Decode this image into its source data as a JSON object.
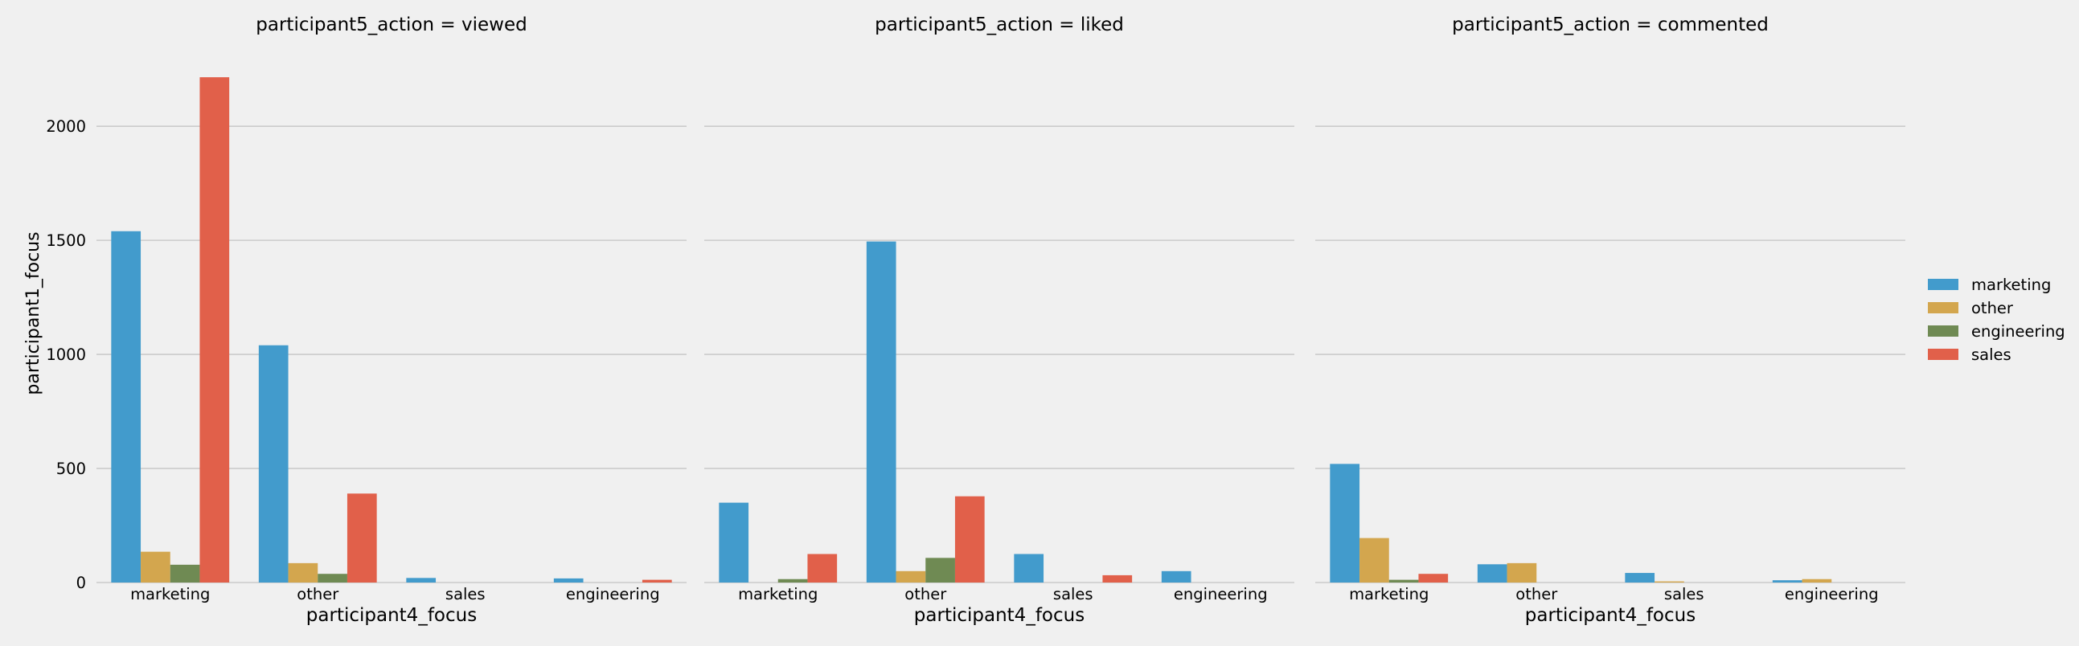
{
  "chart_data": {
    "type": "bar",
    "ylabel": "participant1_focus",
    "ylim": [
      0,
      2300
    ],
    "yticks": [
      0,
      500,
      1000,
      1500,
      2000
    ],
    "grid": true,
    "legend_placement": "right",
    "categories": [
      "marketing",
      "other",
      "sales",
      "engineering"
    ],
    "hue_order": [
      "marketing",
      "other",
      "engineering",
      "sales"
    ],
    "legend": [
      {
        "name": "marketing",
        "color": "#429bcc"
      },
      {
        "name": "other",
        "color": "#d3a64e"
      },
      {
        "name": "engineering",
        "color": "#6f8a53"
      },
      {
        "name": "sales",
        "color": "#e1604a"
      }
    ],
    "panels": [
      {
        "title": "participant5_action = viewed",
        "xlabel": "participant4_focus",
        "series": [
          {
            "name": "marketing",
            "values": [
              1540,
              1040,
              20,
              18
            ]
          },
          {
            "name": "sales",
            "values": [
              2215,
              390,
              null,
              12
            ]
          },
          {
            "name": "other",
            "values": [
              135,
              85,
              null,
              null
            ]
          },
          {
            "name": "engineering",
            "values": [
              78,
              38,
              null,
              null
            ]
          }
        ]
      },
      {
        "title": "participant5_action = liked",
        "xlabel": "participant4_focus",
        "series": [
          {
            "name": "marketing",
            "values": [
              350,
              1495,
              125,
              50
            ]
          },
          {
            "name": "sales",
            "values": [
              125,
              378,
              32,
              null
            ]
          },
          {
            "name": "other",
            "values": [
              null,
              50,
              null,
              null
            ]
          },
          {
            "name": "engineering",
            "values": [
              15,
              108,
              null,
              null
            ]
          }
        ]
      },
      {
        "title": "participant5_action = commented",
        "xlabel": "participant4_focus",
        "series": [
          {
            "name": "marketing",
            "values": [
              520,
              80,
              42,
              10
            ]
          },
          {
            "name": "sales",
            "values": [
              38,
              null,
              null,
              null
            ]
          },
          {
            "name": "other",
            "values": [
              195,
              85,
              5,
              15
            ]
          },
          {
            "name": "engineering",
            "values": [
              12,
              null,
              null,
              null
            ]
          }
        ]
      }
    ]
  }
}
